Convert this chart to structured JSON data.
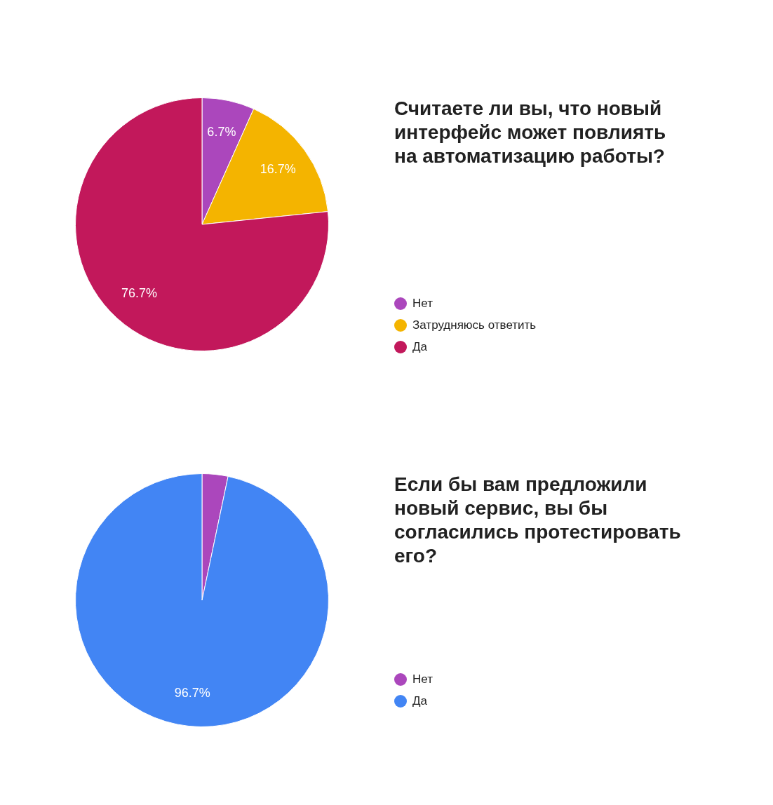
{
  "chart_data": [
    {
      "type": "pie",
      "title": "Считаете ли вы, что новый интерфейс может повлиять на автоматизацию работы?",
      "categories": [
        "Нет",
        "Затрудняюсь ответить",
        "Да"
      ],
      "values": [
        6.7,
        16.7,
        76.7
      ],
      "colors": [
        "#ab47bc",
        "#f4b400",
        "#c2185b"
      ],
      "value_labels": [
        "6.7%",
        "16.7%",
        "76.7%"
      ],
      "legend": "right"
    },
    {
      "type": "pie",
      "title": "Если бы вам предложили новый сервис, вы бы согласились протестировать его?",
      "categories": [
        "Нет",
        "Да"
      ],
      "values": [
        3.3,
        96.7
      ],
      "colors": [
        "#ab47bc",
        "#4285f4"
      ],
      "value_labels": [
        null,
        "96.7%"
      ],
      "legend": "right"
    }
  ]
}
